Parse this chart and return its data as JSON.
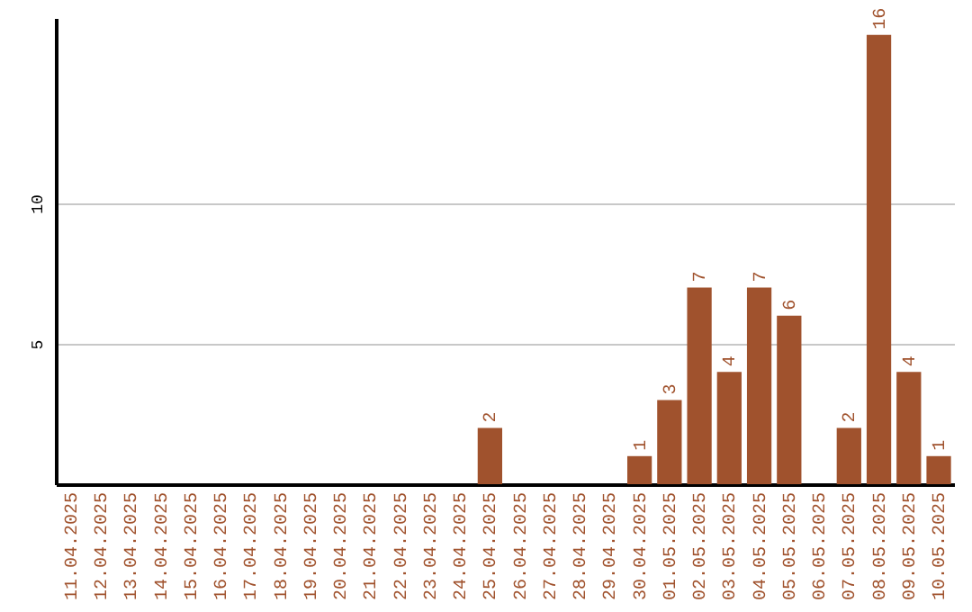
{
  "chart_data": {
    "type": "bar",
    "categories": [
      "11.04.2025",
      "12.04.2025",
      "13.04.2025",
      "14.04.2025",
      "15.04.2025",
      "16.04.2025",
      "17.04.2025",
      "18.04.2025",
      "19.04.2025",
      "20.04.2025",
      "21.04.2025",
      "22.04.2025",
      "23.04.2025",
      "24.04.2025",
      "25.04.2025",
      "26.04.2025",
      "27.04.2025",
      "28.04.2025",
      "29.04.2025",
      "30.04.2025",
      "01.05.2025",
      "02.05.2025",
      "03.05.2025",
      "04.05.2025",
      "05.05.2025",
      "06.05.2025",
      "07.05.2025",
      "08.05.2025",
      "09.05.2025",
      "10.05.2025"
    ],
    "values": [
      0,
      0,
      0,
      0,
      0,
      0,
      0,
      0,
      0,
      0,
      0,
      0,
      0,
      0,
      2,
      0,
      0,
      0,
      0,
      1,
      3,
      7,
      4,
      7,
      6,
      0,
      2,
      16,
      4,
      1
    ],
    "value_labels": [
      null,
      null,
      null,
      null,
      null,
      null,
      null,
      null,
      null,
      null,
      null,
      null,
      null,
      null,
      "2",
      null,
      null,
      null,
      null,
      "1",
      "3",
      "7",
      "4",
      "7",
      "6",
      null,
      "2",
      "16",
      "4",
      "1"
    ],
    "color": "#a0522d",
    "ylim": [
      0,
      16.6
    ],
    "yticks": [
      5,
      10
    ],
    "grid": "y"
  }
}
